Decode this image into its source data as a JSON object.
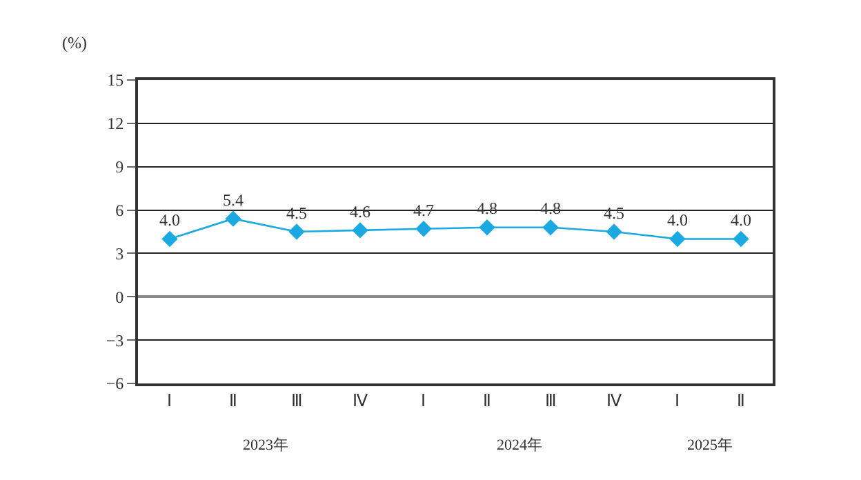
{
  "chart_data": {
    "type": "line",
    "ylabel": "(%)",
    "categories": [
      "Ⅰ",
      "Ⅱ",
      "Ⅲ",
      "Ⅳ",
      "Ⅰ",
      "Ⅱ",
      "Ⅲ",
      "Ⅳ",
      "Ⅰ",
      "Ⅱ"
    ],
    "series": [
      {
        "color": "#1aa9e0",
        "values": [
          4.0,
          5.4,
          4.5,
          4.6,
          4.7,
          4.8,
          4.8,
          4.5,
          4.0,
          4.0
        ],
        "value_labels": [
          "4.0",
          "5.4",
          "4.5",
          "4.6",
          "4.7",
          "4.8",
          "4.8",
          "4.5",
          "4.0",
          "4.0"
        ]
      }
    ],
    "ylim": [
      -6,
      15
    ],
    "yticks": [
      -6,
      -3,
      0,
      3,
      6,
      9,
      12,
      15
    ],
    "grid": "y",
    "marker": "diamond",
    "line_style": "solid",
    "legend": false,
    "annotations": [
      "2023年",
      "2024年",
      "2025年"
    ]
  }
}
